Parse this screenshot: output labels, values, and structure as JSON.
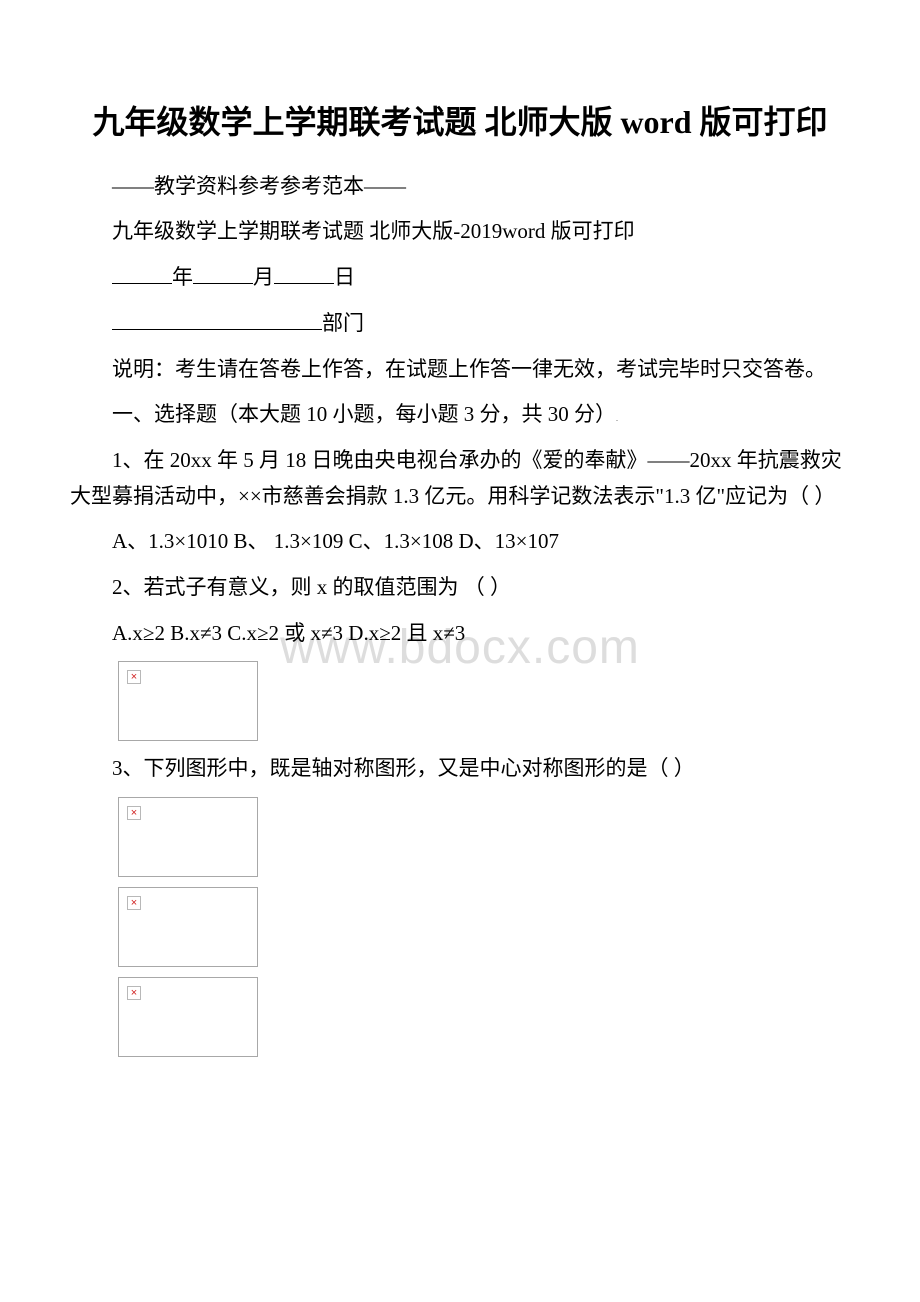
{
  "title": "九年级数学上学期联考试题 北师大版 word 版可打印",
  "header_note": "——教学资料参考参考范本——",
  "subtitle": "九年级数学上学期联考试题 北师大版-2019word 版可打印",
  "date_labels": {
    "year": "年",
    "month": "月",
    "day": "日"
  },
  "dept_label": "部门",
  "instructions": "说明：考生请在答卷上作答，在试题上作答一律无效，考试完毕时只交答卷。",
  "section1_title": "一、选择题（本大题 10 小题，每小题 3 分，共 30 分）",
  "q1_text": "1、在 20xx 年 5 月 18 日晚由央电视台承办的《爱的奉献》——20xx 年抗震救灾大型募捐活动中，××市慈善会捐款 1.3 亿元。用科学记数法表示\"1.3 亿\"应记为（ ）",
  "q1_options": "A、1.3×1010   B、 1.3×109 C、1.3×108   D、13×107",
  "q2_text": "2、若式子有意义，则 x 的取值范围为 （ ）",
  "q2_options": "A.x≥2 B.x≠3 C.x≥2 或 x≠3 D.x≥2 且 x≠3",
  "q3_text": "3、下列图形中，既是轴对称图形，又是中心对称图形的是（ ）",
  "watermark": "www.bdocx.com",
  "broken_mark": "×",
  "colors": {
    "text": "#000000",
    "watermark": "#dddddd",
    "img_border": "#a8a8a8",
    "broken_red": "#d02020"
  }
}
